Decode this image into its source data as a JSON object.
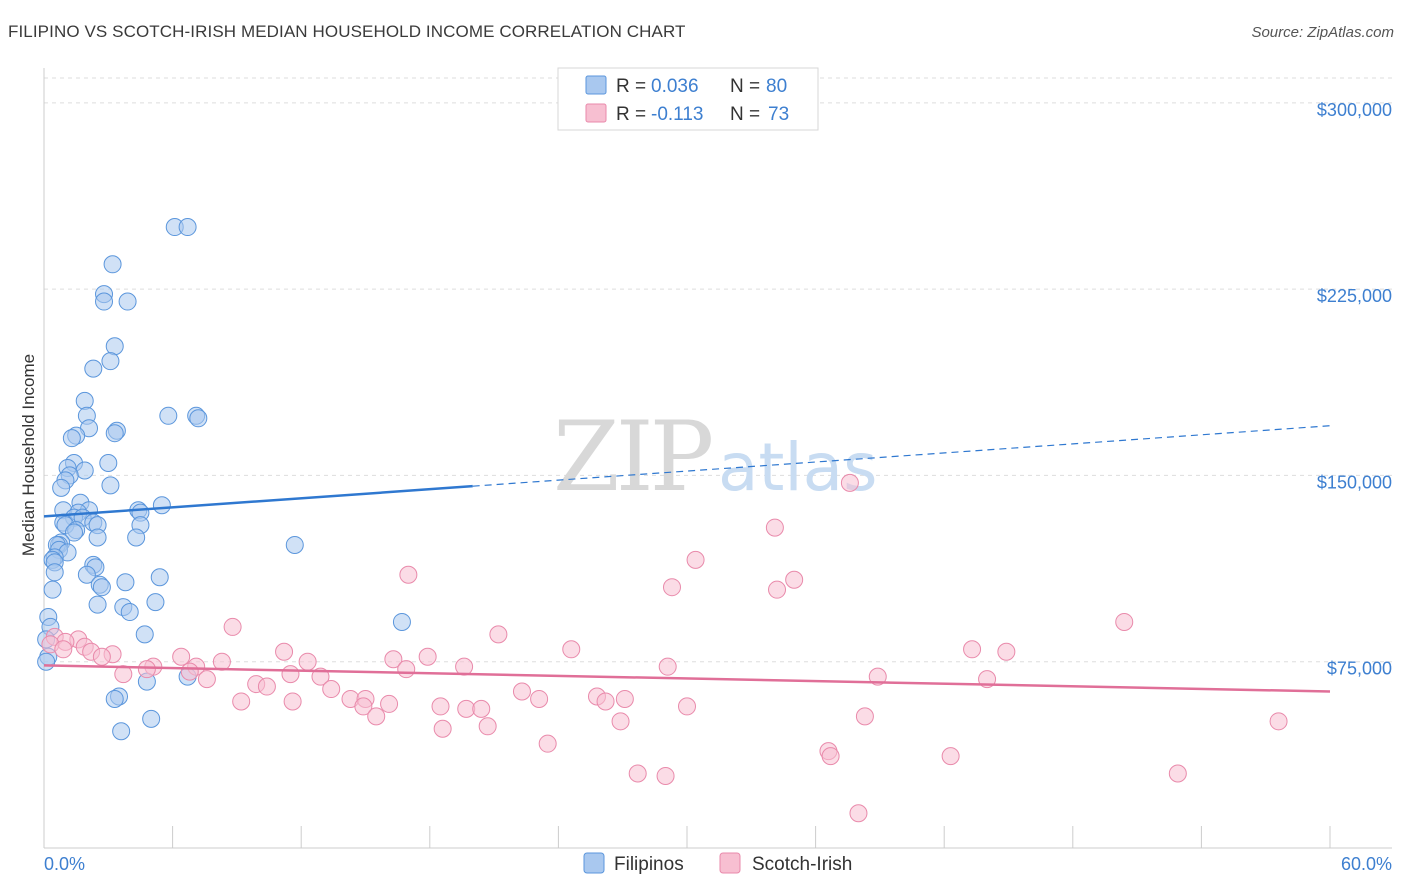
{
  "title": "FILIPINO VS SCOTCH-IRISH MEDIAN HOUSEHOLD INCOME CORRELATION CHART",
  "source": "Source: ZipAtlas.com",
  "watermark": {
    "zip": "ZIP",
    "atlas": "atlas"
  },
  "colors": {
    "filipino_fill": "#a9c8ef",
    "filipino_stroke": "#5b96dc",
    "filipino_line": "#2f78d0",
    "scotch_fill": "#f7bfd1",
    "scotch_stroke": "#e98aab",
    "scotch_line": "#e06f98",
    "grid": "#dddddd",
    "axis_text": "#3d7fd0"
  },
  "stats_legend": [
    {
      "r_label": "R =",
      "r_value": "0.036",
      "n_label": "N =",
      "n_value": "80"
    },
    {
      "r_label": "R =",
      "r_value": "-0.113",
      "n_label": "N =",
      "n_value": "73"
    }
  ],
  "chart_data": {
    "type": "scatter",
    "title": "FILIPINO VS SCOTCH-IRISH MEDIAN HOUSEHOLD INCOME CORRELATION CHART",
    "xlabel": "",
    "ylabel": "Median Household Income",
    "xlim": [
      0,
      60
    ],
    "ylim": [
      0,
      310000
    ],
    "x_tick_labels": [
      "0.0%",
      "60.0%"
    ],
    "y_ticks": [
      75000,
      150000,
      225000,
      300000
    ],
    "y_tick_labels": [
      "$75,000",
      "$150,000",
      "$225,000",
      "$300,000"
    ],
    "grid": true,
    "legend_position": "bottom-center",
    "series": [
      {
        "name": "Filipinos",
        "trend": {
          "x0": 0,
          "y0": 133500,
          "x1": 60,
          "y1": 170000,
          "solid_until": 20
        },
        "points": [
          [
            6.1,
            250000
          ],
          [
            6.7,
            250000
          ],
          [
            3.2,
            235000
          ],
          [
            2.8,
            223000
          ],
          [
            2.8,
            220000
          ],
          [
            3.9,
            220000
          ],
          [
            3.3,
            202000
          ],
          [
            3.1,
            196000
          ],
          [
            2.3,
            193000
          ],
          [
            1.9,
            180000
          ],
          [
            2.0,
            174000
          ],
          [
            5.8,
            174000
          ],
          [
            7.1,
            174000
          ],
          [
            7.2,
            173000
          ],
          [
            2.1,
            169000
          ],
          [
            3.4,
            168000
          ],
          [
            3.3,
            167000
          ],
          [
            1.5,
            166000
          ],
          [
            1.3,
            165000
          ],
          [
            1.4,
            155000
          ],
          [
            3.0,
            155000
          ],
          [
            1.1,
            153000
          ],
          [
            1.9,
            152000
          ],
          [
            1.2,
            150000
          ],
          [
            1.0,
            148000
          ],
          [
            3.1,
            146000
          ],
          [
            0.8,
            145000
          ],
          [
            1.7,
            139000
          ],
          [
            5.5,
            138000
          ],
          [
            4.4,
            136000
          ],
          [
            0.9,
            136000
          ],
          [
            2.1,
            136000
          ],
          [
            1.6,
            135000
          ],
          [
            4.5,
            135000
          ],
          [
            1.4,
            133000
          ],
          [
            1.8,
            133000
          ],
          [
            0.9,
            131000
          ],
          [
            2.3,
            131000
          ],
          [
            1.0,
            130000
          ],
          [
            2.5,
            130000
          ],
          [
            4.5,
            130000
          ],
          [
            1.5,
            128000
          ],
          [
            1.4,
            127000
          ],
          [
            2.5,
            125000
          ],
          [
            4.3,
            125000
          ],
          [
            11.7,
            122000
          ],
          [
            0.8,
            123000
          ],
          [
            0.7,
            122000
          ],
          [
            0.6,
            122000
          ],
          [
            0.7,
            120000
          ],
          [
            1.1,
            119000
          ],
          [
            0.5,
            117000
          ],
          [
            0.4,
            116000
          ],
          [
            0.5,
            115000
          ],
          [
            2.3,
            114000
          ],
          [
            2.4,
            113000
          ],
          [
            0.5,
            111000
          ],
          [
            2.0,
            110000
          ],
          [
            5.4,
            109000
          ],
          [
            3.8,
            107000
          ],
          [
            2.6,
            106000
          ],
          [
            2.7,
            105000
          ],
          [
            0.4,
            104000
          ],
          [
            5.2,
            99000
          ],
          [
            2.5,
            98000
          ],
          [
            3.7,
            97000
          ],
          [
            4.0,
            95000
          ],
          [
            0.2,
            93000
          ],
          [
            16.7,
            91000
          ],
          [
            0.3,
            89000
          ],
          [
            4.7,
            86000
          ],
          [
            0.1,
            84000
          ],
          [
            0.2,
            77000
          ],
          [
            0.1,
            75000
          ],
          [
            6.7,
            69000
          ],
          [
            4.8,
            67000
          ],
          [
            3.5,
            61000
          ],
          [
            3.3,
            60000
          ],
          [
            5.0,
            52000
          ],
          [
            3.6,
            47000
          ]
        ]
      },
      {
        "name": "Scotch-Irish",
        "trend": {
          "x0": 0,
          "y0": 73500,
          "x1": 60,
          "y1": 63000
        },
        "points": [
          [
            37.6,
            147000
          ],
          [
            34.1,
            129000
          ],
          [
            30.4,
            116000
          ],
          [
            17.0,
            110000
          ],
          [
            35.0,
            108000
          ],
          [
            29.3,
            105000
          ],
          [
            34.2,
            104000
          ],
          [
            50.4,
            91000
          ],
          [
            8.8,
            89000
          ],
          [
            21.2,
            86000
          ],
          [
            0.5,
            85000
          ],
          [
            1.6,
            84000
          ],
          [
            1.0,
            83000
          ],
          [
            0.3,
            82000
          ],
          [
            1.9,
            81000
          ],
          [
            0.9,
            80000
          ],
          [
            2.2,
            79000
          ],
          [
            24.6,
            80000
          ],
          [
            43.3,
            80000
          ],
          [
            44.9,
            79000
          ],
          [
            11.2,
            79000
          ],
          [
            3.2,
            78000
          ],
          [
            2.7,
            77000
          ],
          [
            6.4,
            77000
          ],
          [
            17.9,
            77000
          ],
          [
            16.3,
            76000
          ],
          [
            12.3,
            75000
          ],
          [
            8.3,
            75000
          ],
          [
            5.1,
            73000
          ],
          [
            19.6,
            73000
          ],
          [
            29.1,
            73000
          ],
          [
            7.1,
            73000
          ],
          [
            4.8,
            72000
          ],
          [
            16.9,
            72000
          ],
          [
            6.8,
            71000
          ],
          [
            3.7,
            70000
          ],
          [
            11.5,
            70000
          ],
          [
            12.9,
            69000
          ],
          [
            38.9,
            69000
          ],
          [
            44.0,
            68000
          ],
          [
            7.6,
            68000
          ],
          [
            9.9,
            66000
          ],
          [
            10.4,
            65000
          ],
          [
            13.4,
            64000
          ],
          [
            22.3,
            63000
          ],
          [
            25.8,
            61000
          ],
          [
            14.3,
            60000
          ],
          [
            15.0,
            60000
          ],
          [
            23.1,
            60000
          ],
          [
            27.1,
            60000
          ],
          [
            9.2,
            59000
          ],
          [
            11.6,
            59000
          ],
          [
            26.2,
            59000
          ],
          [
            16.1,
            58000
          ],
          [
            30.0,
            57000
          ],
          [
            14.9,
            57000
          ],
          [
            18.5,
            57000
          ],
          [
            19.7,
            56000
          ],
          [
            20.4,
            56000
          ],
          [
            15.5,
            53000
          ],
          [
            38.3,
            53000
          ],
          [
            26.9,
            51000
          ],
          [
            57.6,
            51000
          ],
          [
            20.7,
            49000
          ],
          [
            18.6,
            48000
          ],
          [
            23.5,
            42000
          ],
          [
            36.6,
            39000
          ],
          [
            36.7,
            37000
          ],
          [
            42.3,
            37000
          ],
          [
            27.7,
            30000
          ],
          [
            29.0,
            29000
          ],
          [
            52.9,
            30000
          ],
          [
            38.0,
            14000
          ]
        ]
      }
    ]
  }
}
